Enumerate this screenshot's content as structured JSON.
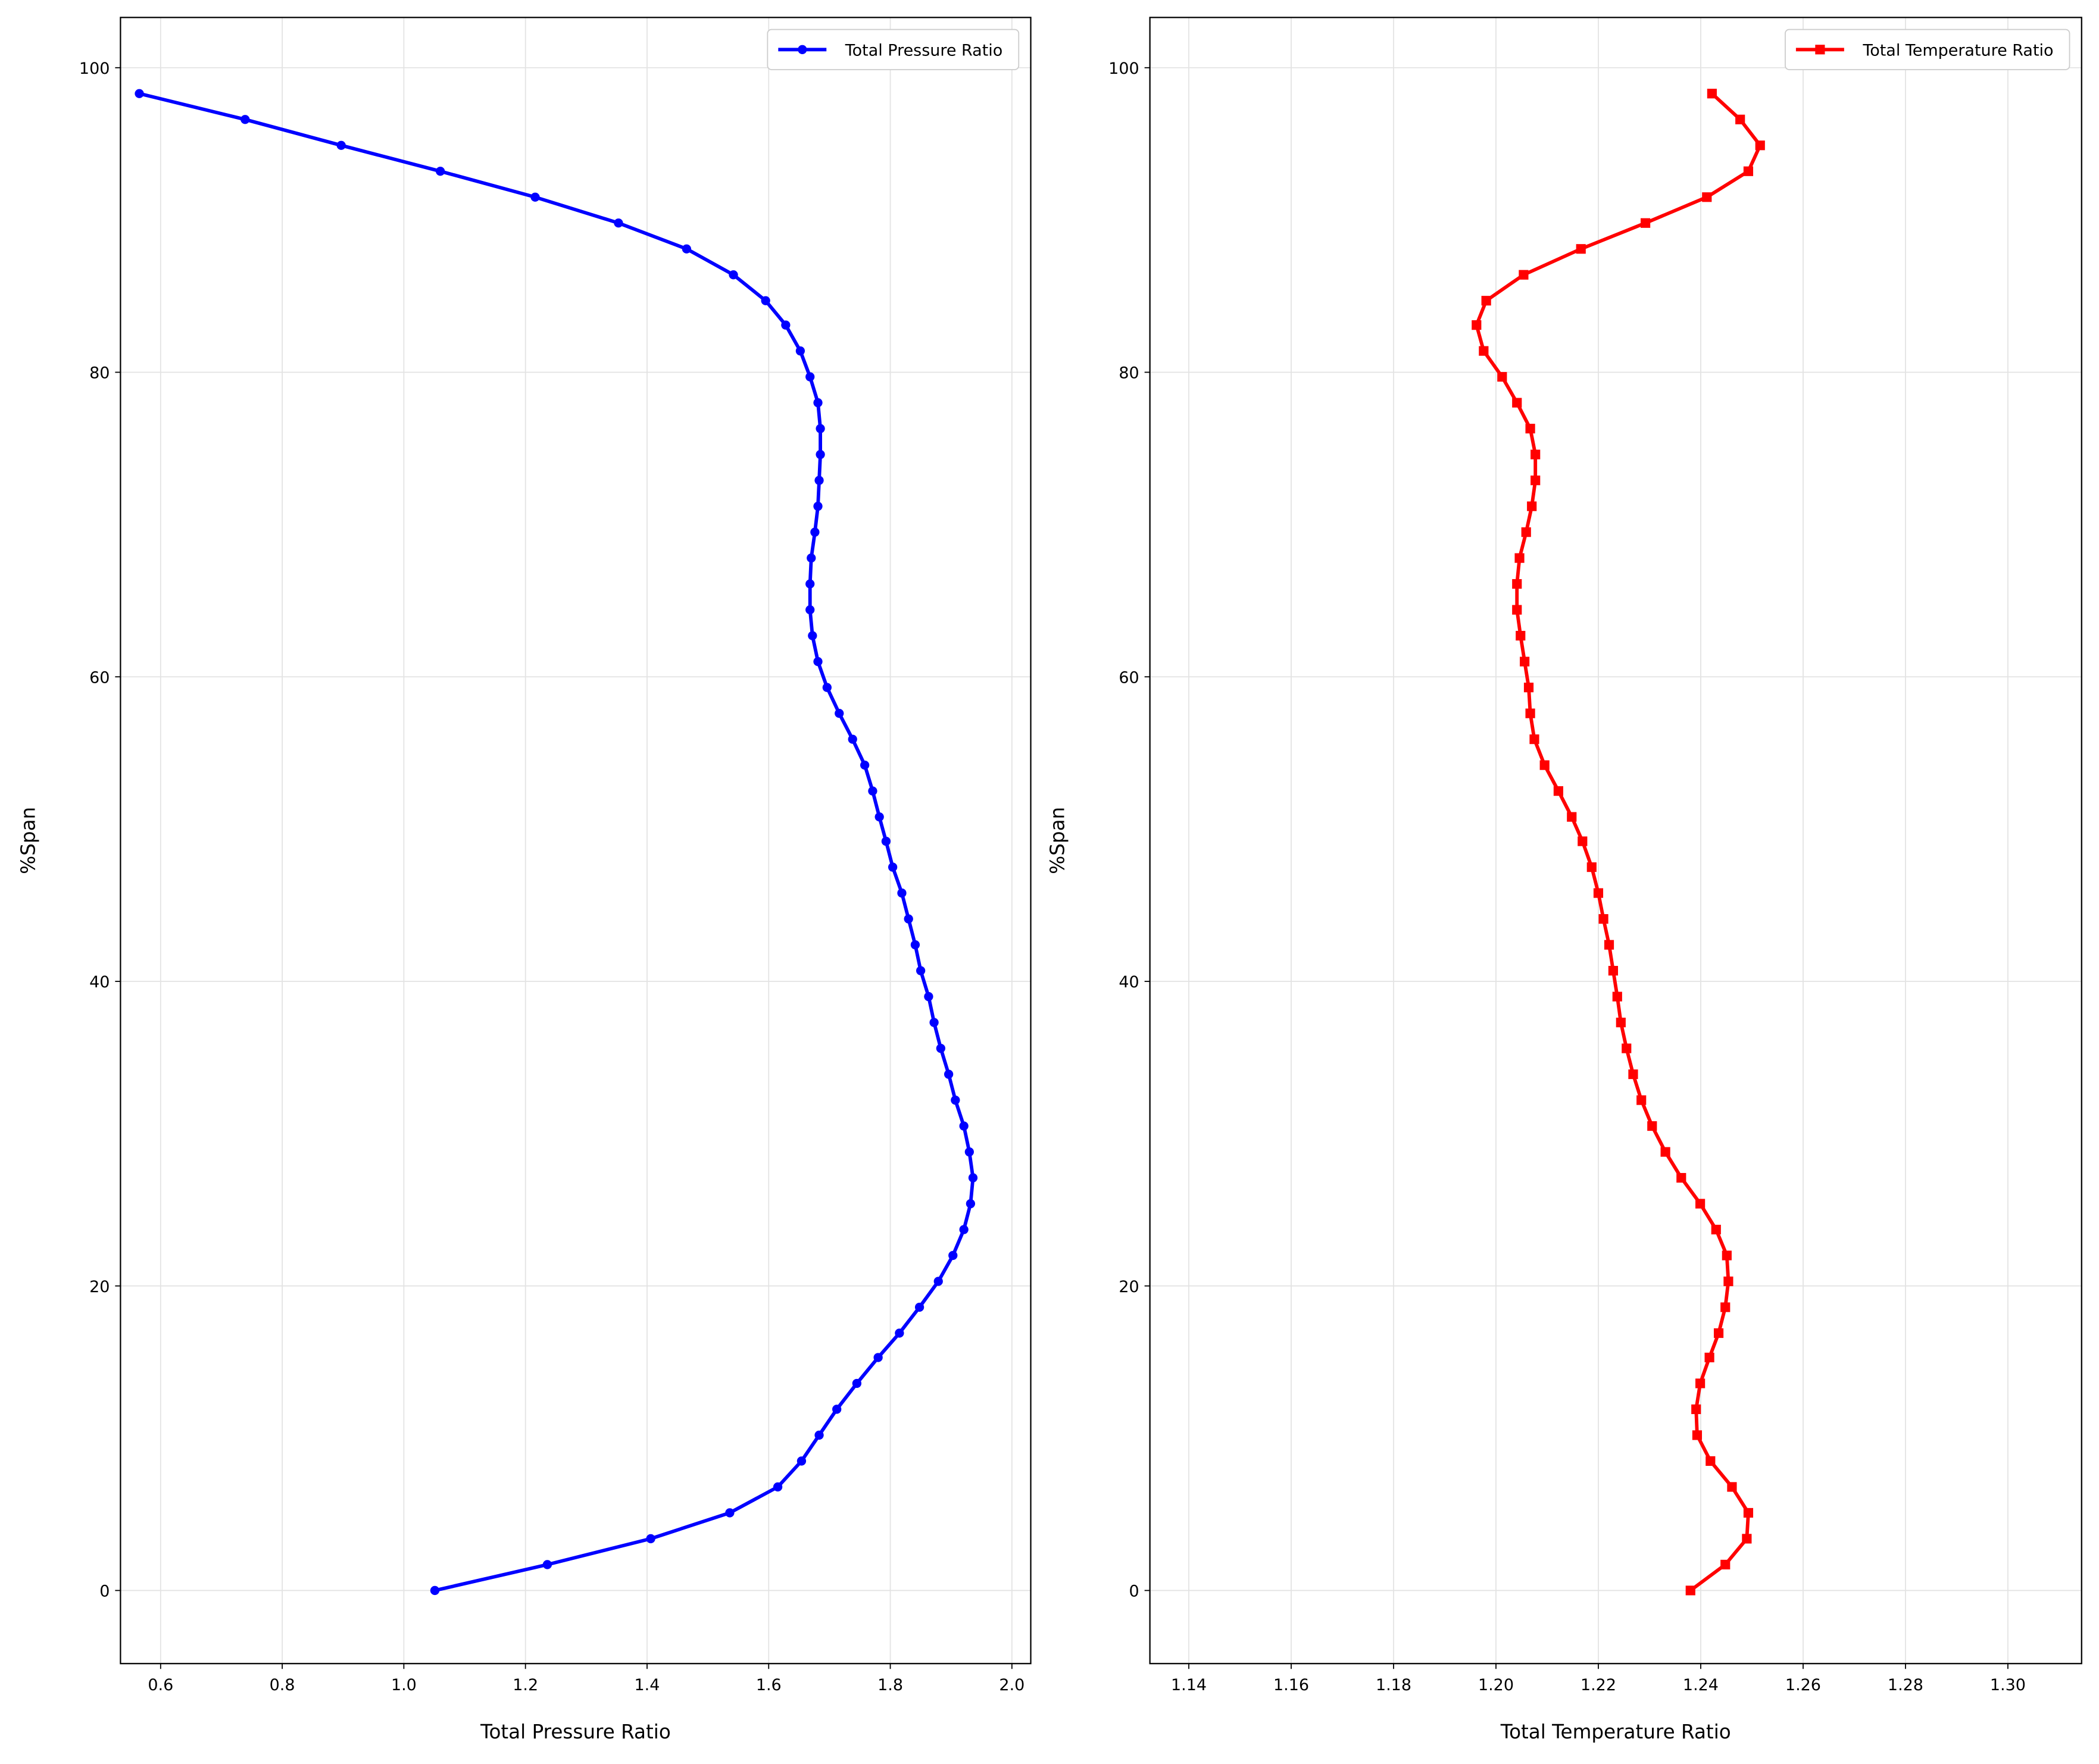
{
  "chart_data": [
    {
      "type": "line",
      "xlabel": "Total Pressure Ratio",
      "ylabel": "%Span",
      "x": [
        1.051,
        1.236,
        1.406,
        1.536,
        1.615,
        1.654,
        1.683,
        1.712,
        1.745,
        1.78,
        1.815,
        1.848,
        1.879,
        1.903,
        1.921,
        1.932,
        1.936,
        1.93,
        1.921,
        1.907,
        1.896,
        1.883,
        1.872,
        1.863,
        1.85,
        1.841,
        1.83,
        1.819,
        1.804,
        1.793,
        1.782,
        1.771,
        1.758,
        1.738,
        1.716,
        1.696,
        1.681,
        1.672,
        1.668,
        1.668,
        1.67,
        1.676,
        1.681,
        1.683,
        1.685,
        1.685,
        1.681,
        1.668,
        1.652,
        1.628,
        1.595,
        1.542,
        1.465,
        1.353,
        1.216,
        1.06,
        0.897,
        0.739,
        0.565
      ],
      "series": [
        {
          "name": "Total Pressure Ratio",
          "color": "#0000ff",
          "marker": "circle",
          "values": [
            0,
            1.7,
            3.4,
            5.1,
            6.8,
            8.5,
            10.2,
            11.9,
            13.6,
            15.3,
            16.9,
            18.6,
            20.3,
            22.0,
            23.7,
            25.4,
            27.1,
            28.8,
            30.5,
            32.2,
            33.9,
            35.6,
            37.3,
            39.0,
            40.7,
            42.4,
            44.1,
            45.8,
            47.5,
            49.2,
            50.8,
            52.5,
            54.2,
            55.9,
            57.6,
            59.3,
            61.0,
            62.7,
            64.4,
            66.1,
            67.8,
            69.5,
            71.2,
            72.9,
            74.6,
            76.3,
            78.0,
            79.7,
            81.4,
            83.1,
            84.7,
            86.4,
            88.1,
            89.8,
            91.5,
            93.2,
            94.9,
            96.6,
            98.3
          ]
        }
      ],
      "xlim": [
        0.534,
        2.031
      ],
      "ylim": [
        -4.8,
        103.3
      ],
      "xticks": [
        0.6,
        0.8,
        {
          "value": 1,
          "label": "1.0"
        },
        1.2,
        1.4,
        1.6,
        1.8,
        {
          "value": 2,
          "label": "2.0"
        }
      ],
      "yticks": [
        0,
        20,
        40,
        60,
        80,
        100
      ],
      "grid": true,
      "legend": "upper right"
    },
    {
      "type": "line",
      "xlabel": "Total Temperature Ratio",
      "ylabel": "%Span",
      "x": [
        1.238,
        1.2448,
        1.249,
        1.2493,
        1.2461,
        1.2419,
        1.2393,
        1.2391,
        1.2399,
        1.2417,
        1.2435,
        1.2448,
        1.2454,
        1.2451,
        1.243,
        1.2399,
        1.2362,
        1.2331,
        1.2305,
        1.2284,
        1.2268,
        1.2255,
        1.2244,
        1.2237,
        1.2229,
        1.2221,
        1.221,
        1.22,
        1.2187,
        1.2169,
        1.2148,
        1.2122,
        1.2095,
        1.2075,
        1.2067,
        1.2064,
        1.2056,
        1.2048,
        1.2041,
        1.2041,
        1.2046,
        1.2059,
        1.207,
        1.2077,
        1.2077,
        1.2067,
        1.2041,
        1.2012,
        1.1976,
        1.1962,
        1.1981,
        1.2054,
        1.2166,
        1.2292,
        1.2412,
        1.2493,
        1.2516,
        1.2477,
        1.2422
      ],
      "series": [
        {
          "name": "Total Temperature Ratio",
          "color": "#ff0000",
          "marker": "square",
          "values": [
            0,
            1.7,
            3.4,
            5.1,
            6.8,
            8.5,
            10.2,
            11.9,
            13.6,
            15.3,
            16.9,
            18.6,
            20.3,
            22.0,
            23.7,
            25.4,
            27.1,
            28.8,
            30.5,
            32.2,
            33.9,
            35.6,
            37.3,
            39.0,
            40.7,
            42.4,
            44.1,
            45.8,
            47.5,
            49.2,
            50.8,
            52.5,
            54.2,
            55.9,
            57.6,
            59.3,
            61.0,
            62.7,
            64.4,
            66.1,
            67.8,
            69.5,
            71.2,
            72.9,
            74.6,
            76.3,
            78.0,
            79.7,
            81.4,
            83.1,
            84.7,
            86.4,
            88.1,
            89.8,
            91.5,
            93.2,
            94.9,
            96.6,
            98.3
          ]
        }
      ],
      "xlim": [
        1.1324,
        1.3144
      ],
      "ylim": [
        -4.8,
        103.3
      ],
      "xticks": [
        1.14,
        1.16,
        1.18,
        {
          "value": 1.2,
          "label": "1.20"
        },
        1.22,
        1.24,
        1.26,
        1.28,
        {
          "value": 1.3,
          "label": "1.30"
        }
      ],
      "yticks": [
        0,
        20,
        40,
        60,
        80,
        100
      ],
      "grid": true,
      "legend": "upper right"
    }
  ]
}
